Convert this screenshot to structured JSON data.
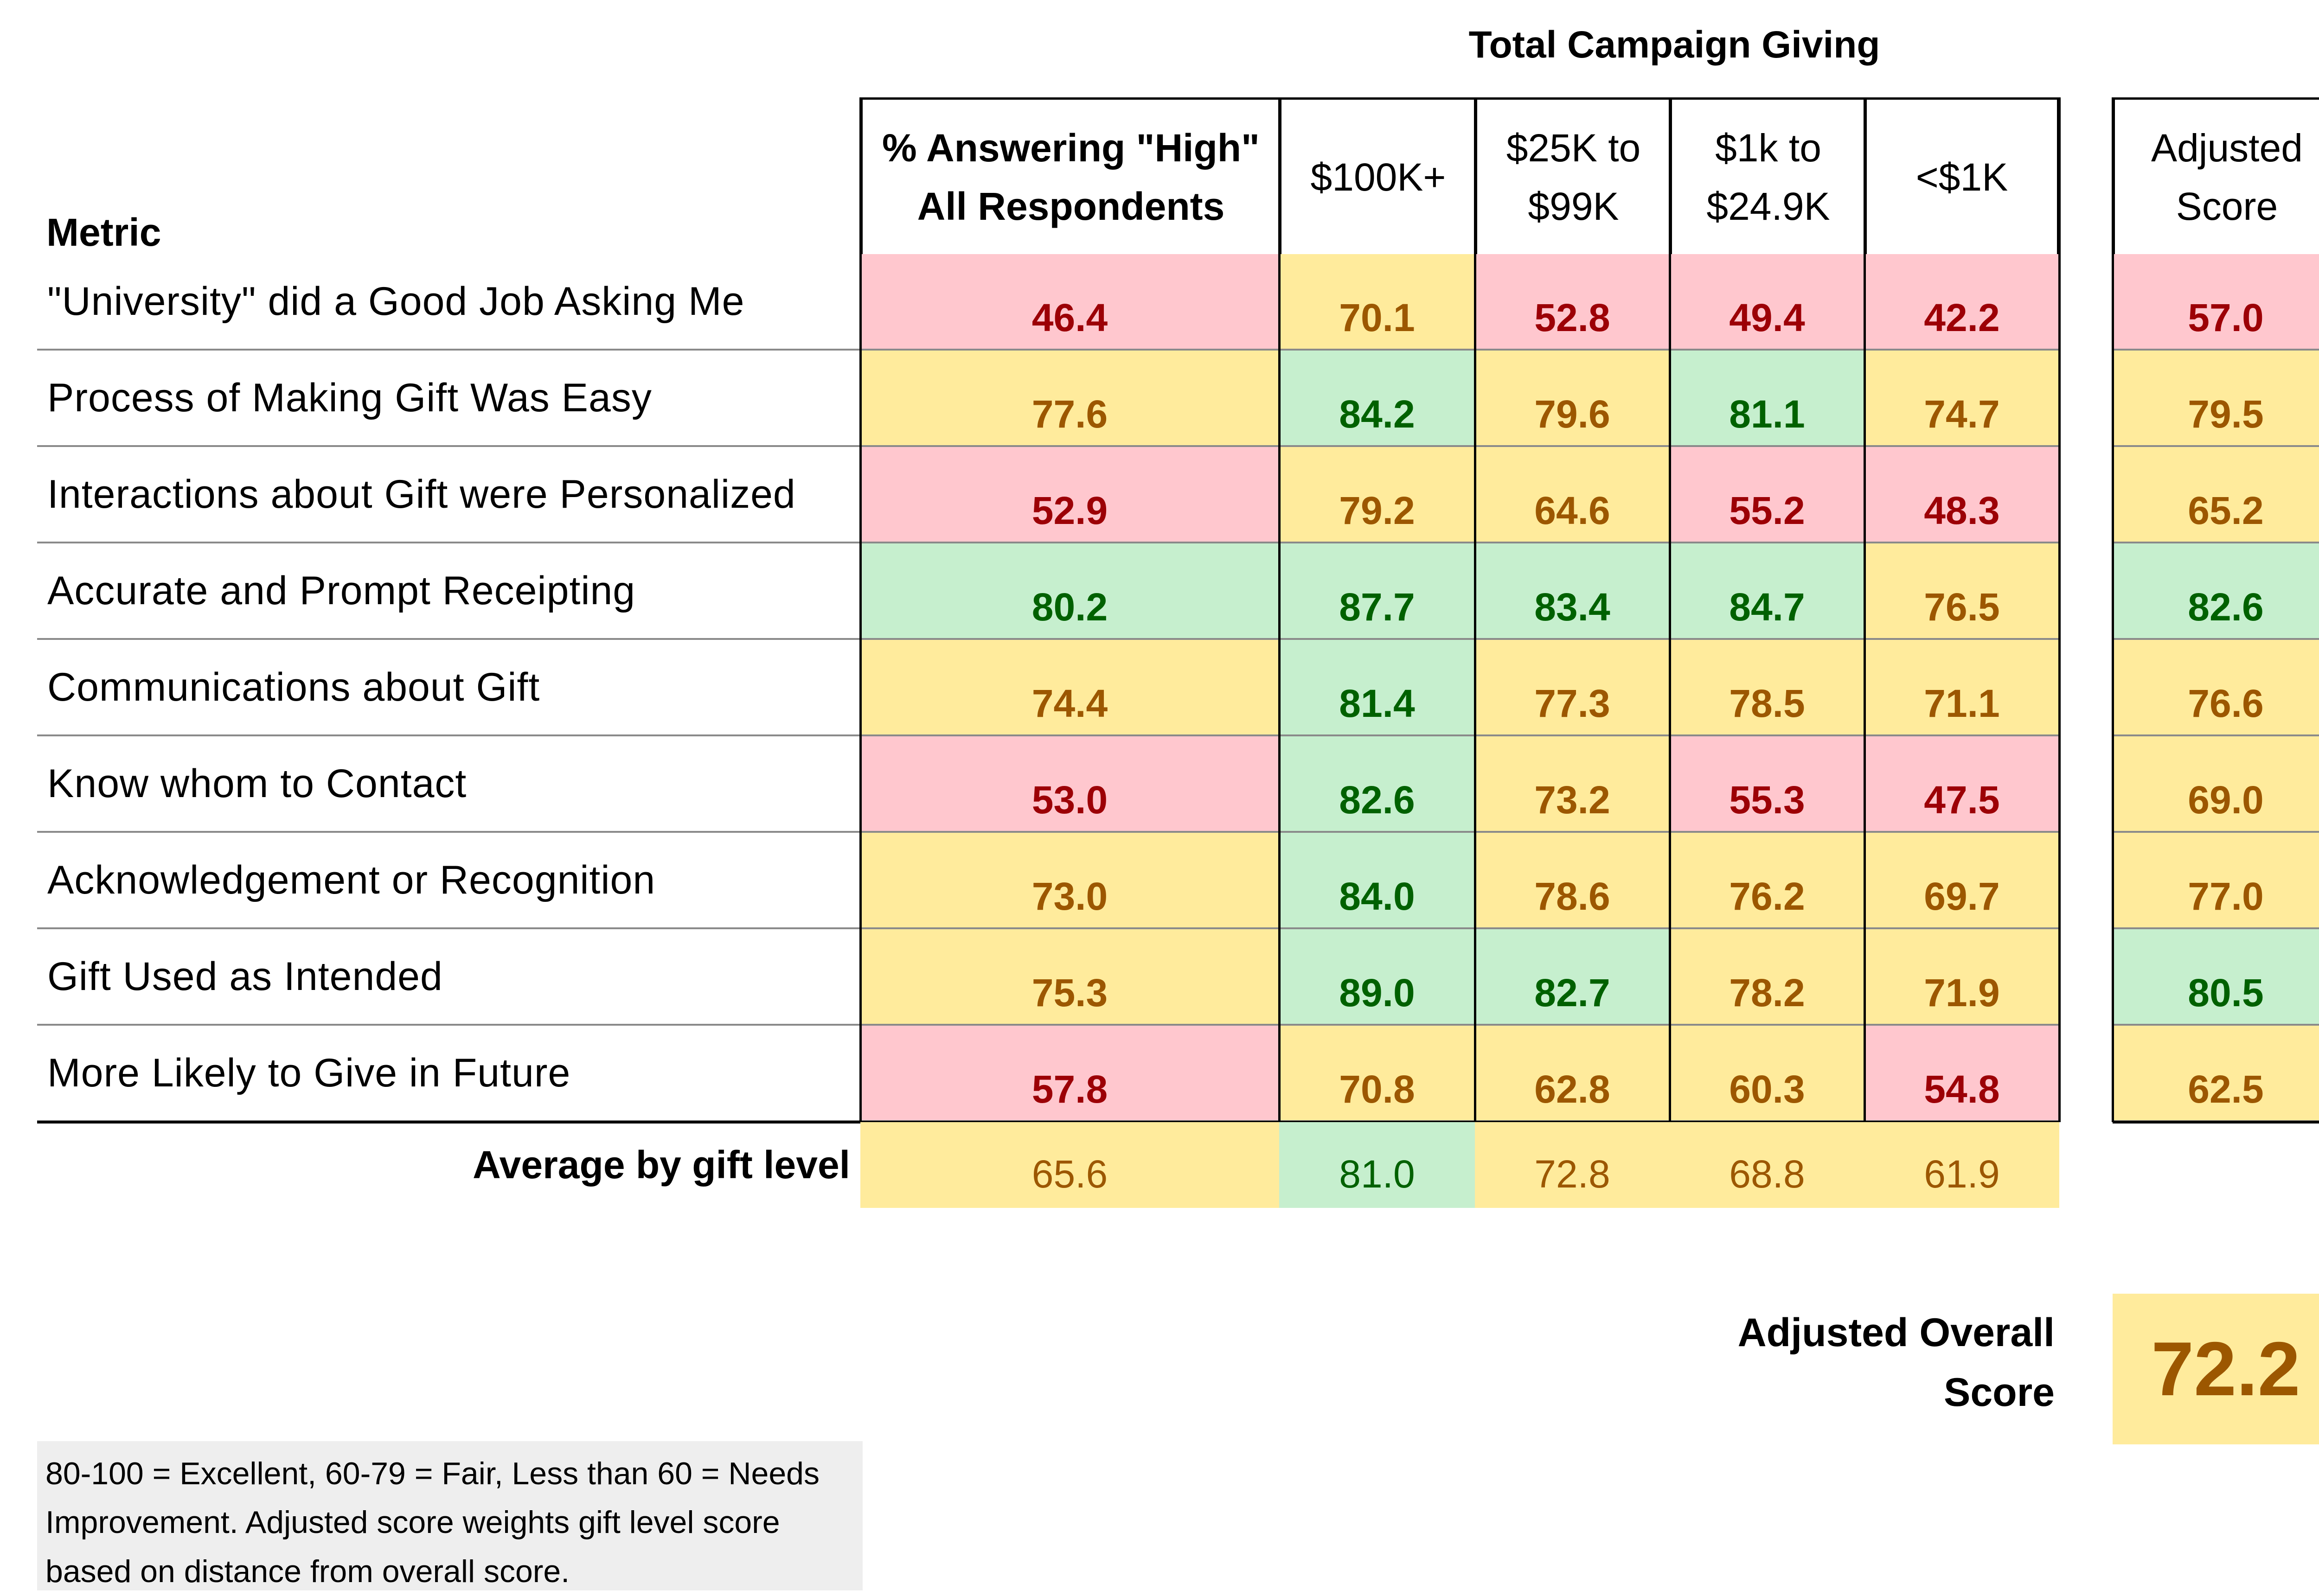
{
  "chart_data": {
    "type": "table",
    "title": "Total Campaign Giving",
    "metric_header": "Metric",
    "columns": [
      {
        "label": "% Answering \"High\" All Respondents",
        "bold": true
      },
      {
        "label": "$100K+",
        "bold": false
      },
      {
        "label": "$25K to $99K",
        "bold": false
      },
      {
        "label": "$1k to $24.9K",
        "bold": false
      },
      {
        "label": "<$1K",
        "bold": false
      }
    ],
    "adjusted_header": "Adjusted Score",
    "rows": [
      {
        "metric": "\"University\" did a Good Job Asking Me",
        "values": [
          46.4,
          70.1,
          52.8,
          49.4,
          42.2
        ],
        "adjusted": 57.0
      },
      {
        "metric": "Process of Making Gift Was Easy",
        "values": [
          77.6,
          84.2,
          79.6,
          81.1,
          74.7
        ],
        "adjusted": 79.5
      },
      {
        "metric": "Interactions about Gift were Personalized",
        "values": [
          52.9,
          79.2,
          64.6,
          55.2,
          48.3
        ],
        "adjusted": 65.2
      },
      {
        "metric": "Accurate and Prompt Receipting",
        "values": [
          80.2,
          87.7,
          83.4,
          84.7,
          76.5
        ],
        "adjusted": 82.6
      },
      {
        "metric": "Communications about Gift",
        "values": [
          74.4,
          81.4,
          77.3,
          78.5,
          71.1
        ],
        "adjusted": 76.6
      },
      {
        "metric": "Know whom to Contact",
        "values": [
          53.0,
          82.6,
          73.2,
          55.3,
          47.5
        ],
        "adjusted": 69.0
      },
      {
        "metric": "Acknowledgement or Recognition",
        "values": [
          73.0,
          84.0,
          78.6,
          76.2,
          69.7
        ],
        "adjusted": 77.0
      },
      {
        "metric": "Gift Used as Intended",
        "values": [
          75.3,
          89.0,
          82.7,
          78.2,
          71.9
        ],
        "adjusted": 80.5
      },
      {
        "metric": "More Likely to Give in Future",
        "values": [
          57.8,
          70.8,
          62.8,
          60.3,
          54.8
        ],
        "adjusted": 62.5
      }
    ],
    "average_label": "Average by gift level",
    "averages": [
      65.6,
      81.0,
      72.8,
      68.8,
      61.9
    ],
    "overall_label": "Adjusted Overall Score",
    "overall_value": 72.2,
    "note": "80-100 = Excellent, 60-79 = Fair, Less than 60 = Needs Improvement.  Adjusted score weights gift level score based on distance from overall score.",
    "thresholds": {
      "excellent_min": 80,
      "fair_min": 60
    },
    "colors": {
      "excellent_fill": "#c6efce",
      "excellent_text": "#006100",
      "fair_fill": "#ffeb9c",
      "fair_text": "#9c5700",
      "poor_fill": "#ffc7ce",
      "poor_text": "#9c0006",
      "note_fill": "#eeeeee"
    }
  }
}
